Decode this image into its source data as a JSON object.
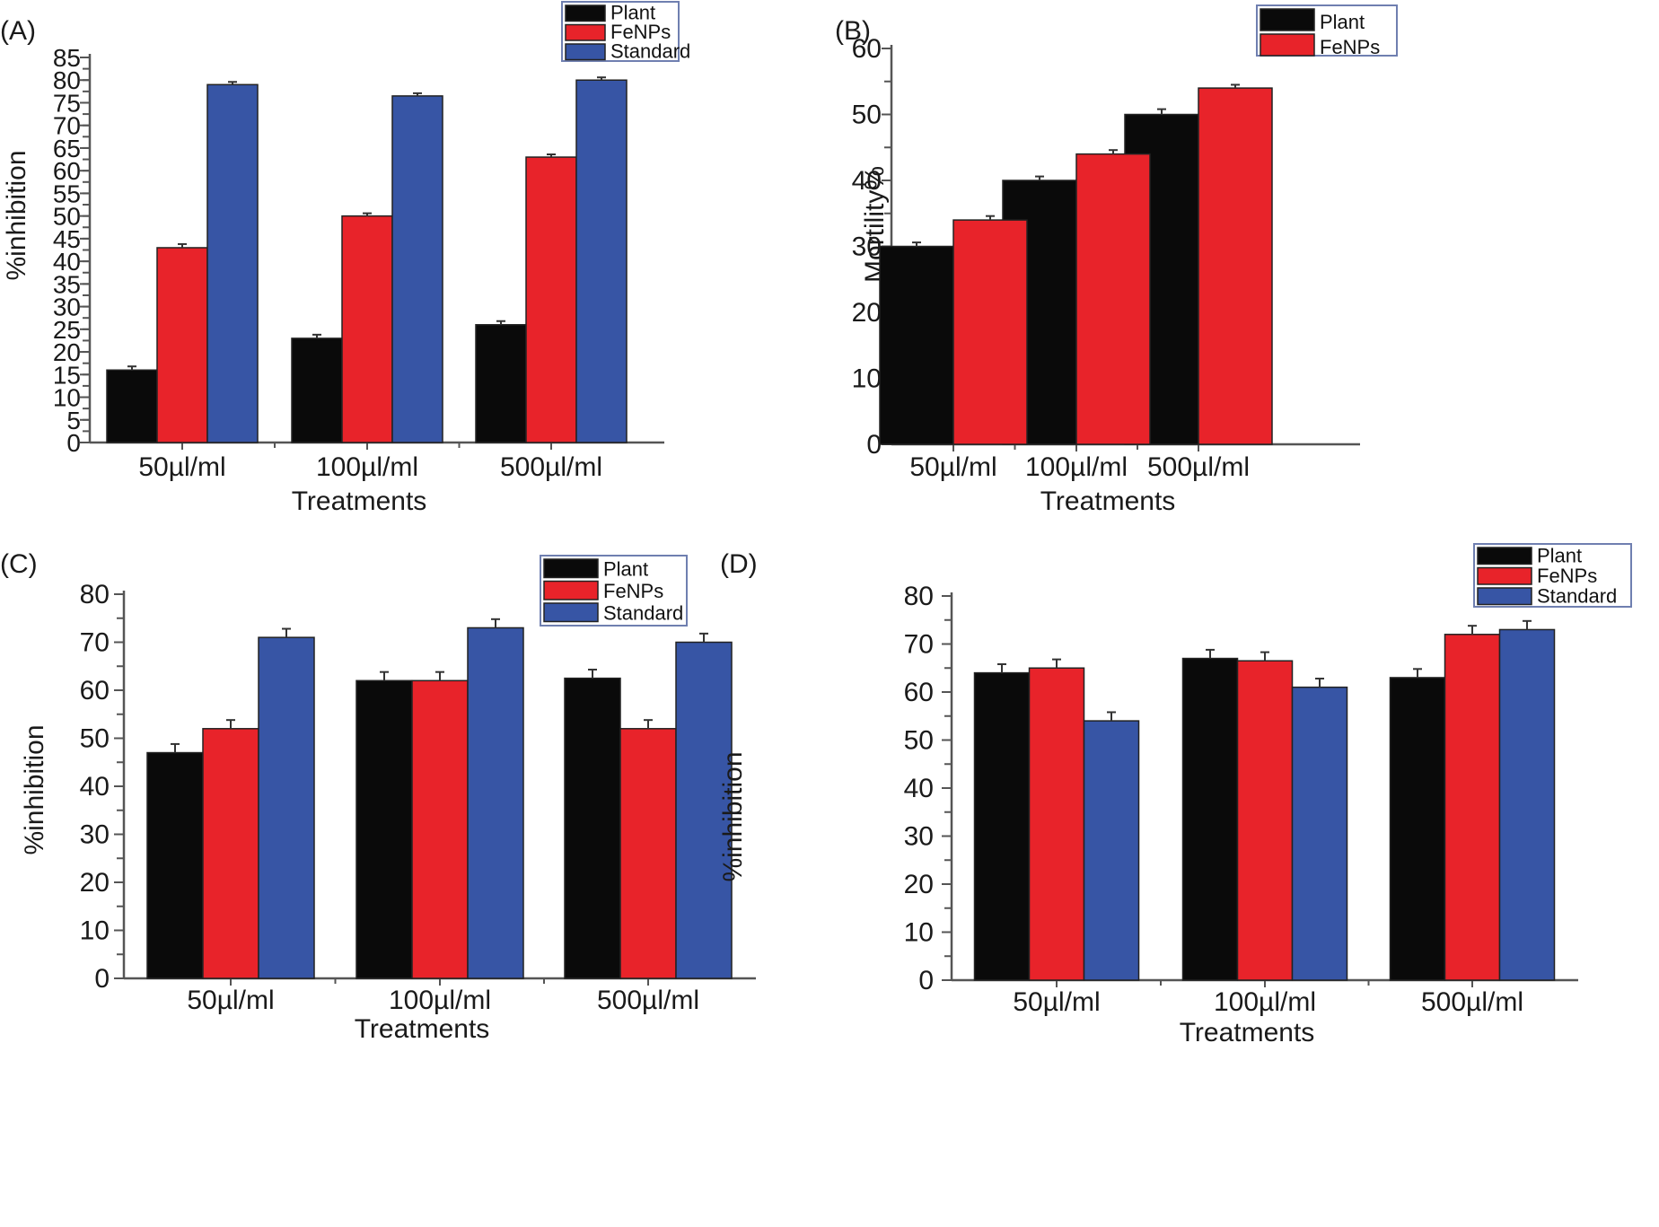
{
  "figure": {
    "colors": {
      "Plant": "#0a0a0a",
      "FeNPs": "#e8232a",
      "Standard": "#3755a5"
    }
  },
  "chart_data": [
    {
      "panel": "(A)",
      "type": "bar",
      "xlabel": "Treatments",
      "ylabel": "%inhibition",
      "categories": [
        "50µl/ml",
        "100µl/ml",
        "500µl/ml"
      ],
      "ylim": [
        0,
        85
      ],
      "yticks": [
        0,
        5,
        10,
        15,
        20,
        25,
        30,
        35,
        40,
        45,
        50,
        55,
        60,
        65,
        70,
        75,
        80,
        85
      ],
      "legend": [
        "Plant",
        "FeNPs",
        "Standard"
      ],
      "legend_position": "top-right",
      "series": [
        {
          "name": "Plant",
          "values": [
            16,
            23,
            26
          ],
          "errors": [
            0.8,
            0.8,
            0.8
          ]
        },
        {
          "name": "FeNPs",
          "values": [
            43,
            50,
            63
          ],
          "errors": [
            0.8,
            0.6,
            0.6
          ]
        },
        {
          "name": "Standard",
          "values": [
            79,
            76.5,
            80
          ],
          "errors": [
            0.6,
            0.6,
            0.6
          ]
        }
      ]
    },
    {
      "panel": "(B)",
      "type": "bar",
      "xlabel": "Treatments",
      "ylabel": "Mortility%",
      "categories": [
        "50µl/ml",
        "100µl/ml",
        "500µl/ml"
      ],
      "ylim": [
        0,
        60
      ],
      "yticks": [
        0,
        10,
        20,
        30,
        40,
        50,
        60
      ],
      "legend": [
        "Plant",
        "FeNPs"
      ],
      "legend_position": "top-right",
      "series": [
        {
          "name": "Plant",
          "values": [
            30,
            40,
            50
          ],
          "errors": [
            0.6,
            0.6,
            0.8
          ]
        },
        {
          "name": "FeNPs",
          "values": [
            34,
            44,
            54
          ],
          "errors": [
            0.6,
            0.6,
            0.5
          ]
        }
      ]
    },
    {
      "panel": "(C)",
      "type": "bar",
      "xlabel": "Treatments",
      "ylabel": "%inhibition",
      "categories": [
        "50µl/ml",
        "100µl/ml",
        "500µl/ml"
      ],
      "ylim": [
        0,
        80
      ],
      "yticks": [
        0,
        10,
        20,
        30,
        40,
        50,
        60,
        70,
        80
      ],
      "legend": [
        "Plant",
        "FeNPs",
        "Standard"
      ],
      "legend_position": "top-right",
      "series": [
        {
          "name": "Plant",
          "values": [
            47,
            62,
            62.5
          ],
          "errors": [
            1.8,
            1.8,
            1.8
          ]
        },
        {
          "name": "FeNPs",
          "values": [
            52,
            62,
            52
          ],
          "errors": [
            1.8,
            1.8,
            1.8
          ]
        },
        {
          "name": "Standard",
          "values": [
            71,
            73,
            70
          ],
          "errors": [
            1.8,
            1.8,
            1.8
          ]
        }
      ]
    },
    {
      "panel": "(D)",
      "type": "bar",
      "xlabel": "Treatments",
      "ylabel": "%inhibition",
      "categories": [
        "50µl/ml",
        "100µl/ml",
        "500µl/ml"
      ],
      "ylim": [
        0,
        80
      ],
      "yticks": [
        0,
        10,
        20,
        30,
        40,
        50,
        60,
        70,
        80
      ],
      "legend": [
        "Plant",
        "FeNPs",
        "Standard"
      ],
      "legend_position": "top-right",
      "series": [
        {
          "name": "Plant",
          "values": [
            64,
            67,
            63
          ],
          "errors": [
            1.8,
            1.8,
            1.8
          ]
        },
        {
          "name": "FeNPs",
          "values": [
            65,
            66.5,
            72
          ],
          "errors": [
            1.8,
            1.8,
            1.8
          ]
        },
        {
          "name": "Standard",
          "values": [
            54,
            61,
            73
          ],
          "errors": [
            1.8,
            1.8,
            1.8
          ]
        }
      ]
    }
  ]
}
